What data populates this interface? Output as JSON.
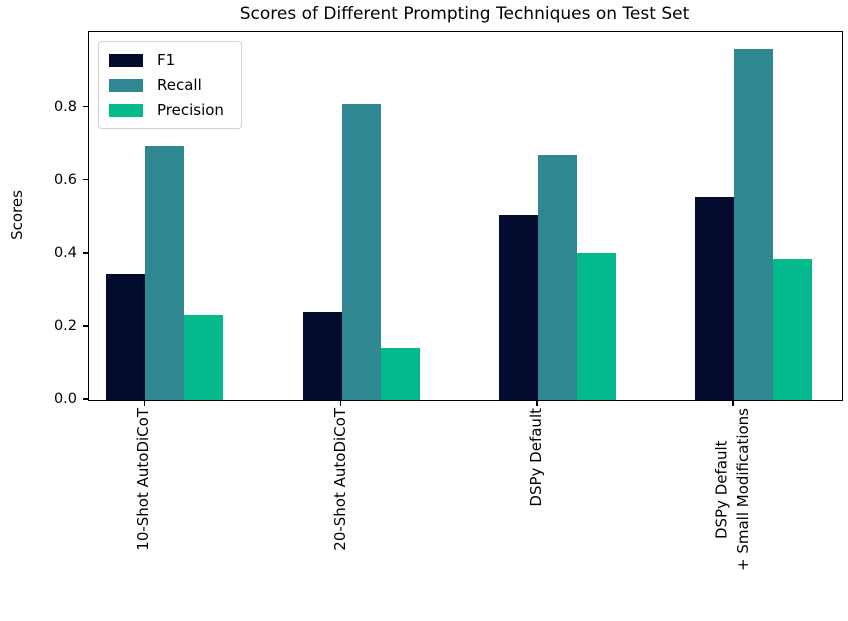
{
  "chart_data": {
    "type": "bar",
    "title": "Scores of Different Prompting Techniques on Test Set",
    "xlabel": "",
    "ylabel": "Scores",
    "categories": [
      "10-Shot AutoDiCoT",
      "20-Shot AutoDiCoT",
      "DSPy Default",
      "DSPy Default\n+ Small Modifications"
    ],
    "series": [
      {
        "name": "F1",
        "color": "#030c2e",
        "values": [
          0.345,
          0.24,
          0.505,
          0.555
        ]
      },
      {
        "name": "Recall",
        "color": "#2f8891",
        "values": [
          0.695,
          0.81,
          0.67,
          0.96
        ]
      },
      {
        "name": "Precision",
        "color": "#04b98c",
        "values": [
          0.233,
          0.142,
          0.403,
          0.386
        ]
      }
    ],
    "yticks": [
      "0.0",
      "0.2",
      "0.4",
      "0.6",
      "0.8"
    ],
    "ylim": [
      0,
      1.007
    ],
    "grid": false,
    "legend_position": "upper left",
    "background": "#ffffff",
    "text_color": "#000000"
  }
}
